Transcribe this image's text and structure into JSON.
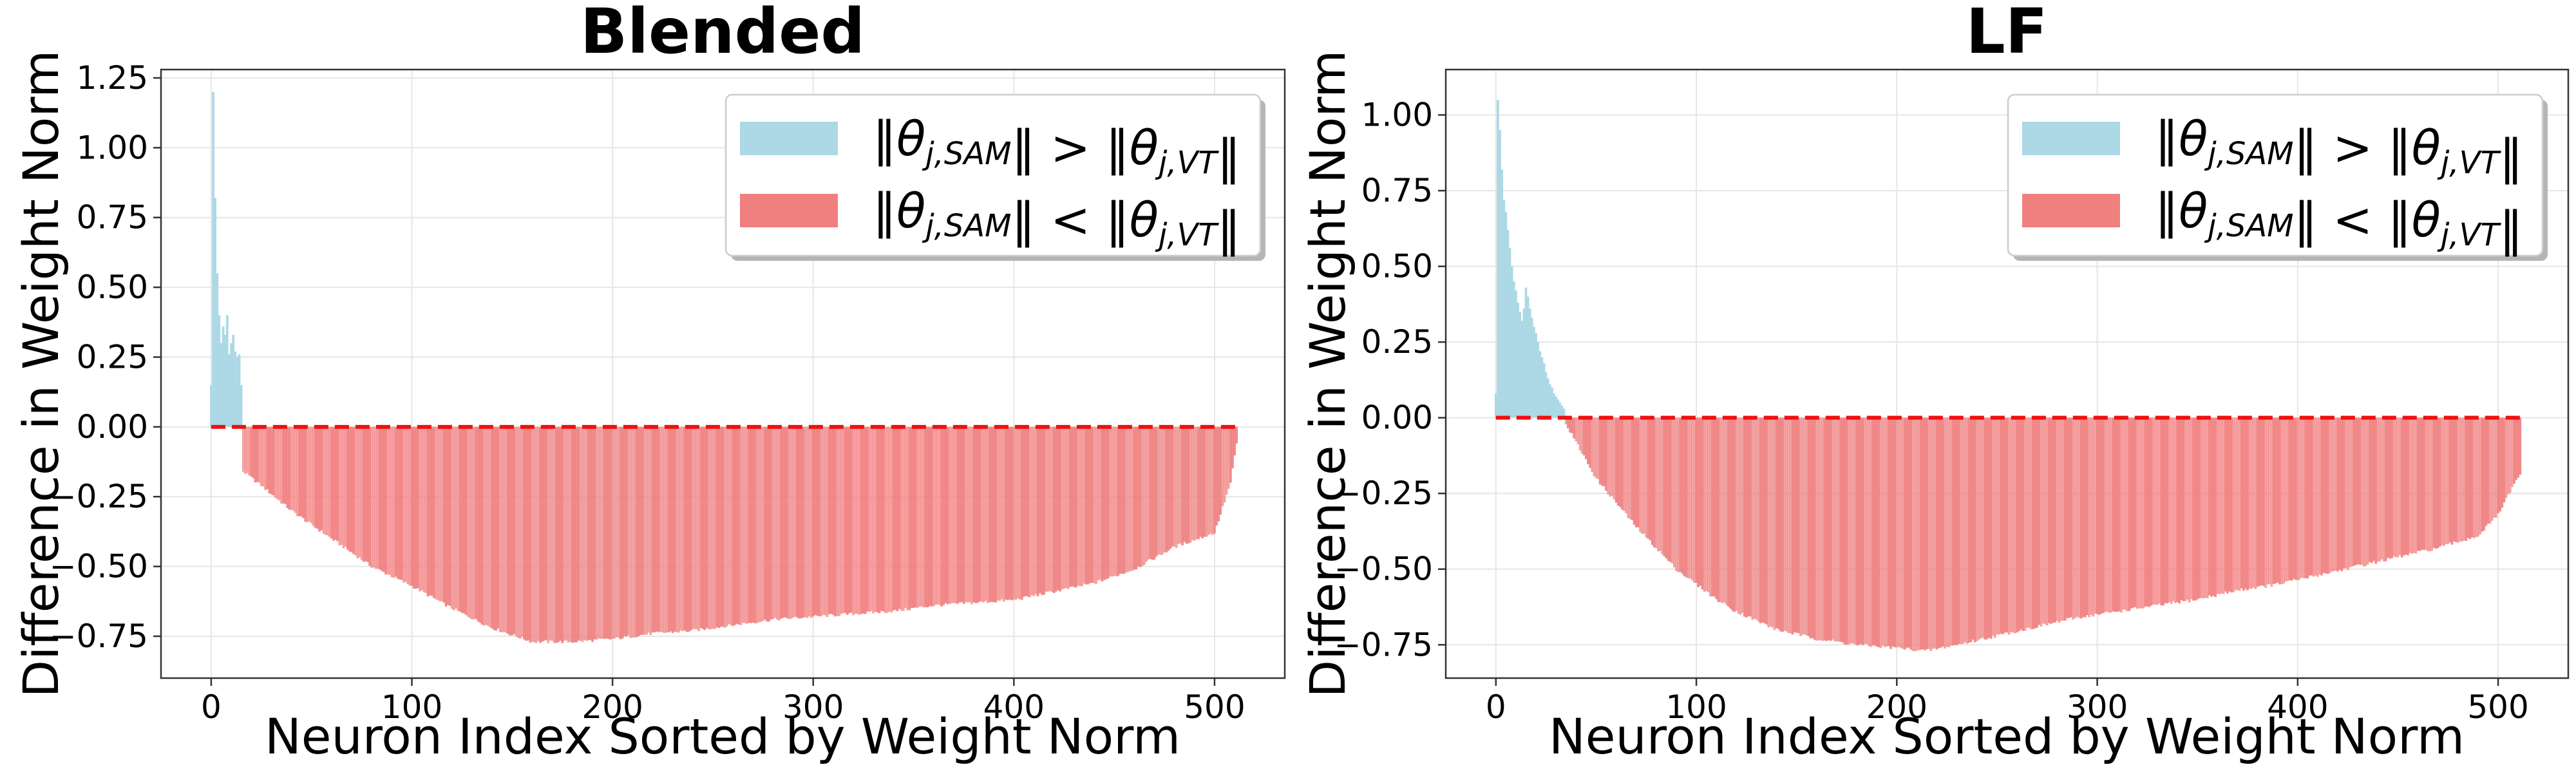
{
  "chart_data": [
    {
      "type": "bar",
      "title": "Blended",
      "xlabel": "Neuron Index Sorted by Weight Norm",
      "ylabel": "Difference in Weight Norm",
      "xlim": [
        -25,
        535
      ],
      "ylim": [
        -0.9,
        1.28
      ],
      "xticks": [
        0,
        100,
        200,
        300,
        400,
        500
      ],
      "yticks": [
        -0.75,
        -0.5,
        -0.25,
        0.0,
        0.25,
        0.5,
        0.75,
        1.0,
        1.25
      ],
      "ytick_labels": [
        "−0.75",
        "−0.50",
        "−0.25",
        "0.00",
        "0.25",
        "0.50",
        "0.75",
        "1.00",
        "1.25"
      ],
      "grid": true,
      "legend_position": "top-right",
      "n_neurons": 512,
      "positive_count": 16,
      "zero_line": {
        "x": [
          0,
          511
        ],
        "y": 0.0,
        "style": "dashed",
        "color": "#ee1111"
      },
      "series": [
        {
          "name": "‖θj,SAM‖ > ‖θj,VT‖",
          "color": "#add8e6",
          "values": [
            0.15,
            1.2,
            0.82,
            0.55,
            0.4,
            0.3,
            0.36,
            0.33,
            0.4,
            0.26,
            0.3,
            0.33,
            0.27,
            0.25,
            0.26,
            0.15
          ]
        },
        {
          "name": "‖θj,SAM‖ < ‖θj,VT‖",
          "color": "#f08080",
          "curve_points": [
            [
              16,
              -0.16
            ],
            [
              25,
              -0.21
            ],
            [
              40,
              -0.3
            ],
            [
              60,
              -0.4
            ],
            [
              80,
              -0.5
            ],
            [
              100,
              -0.57
            ],
            [
              120,
              -0.65
            ],
            [
              140,
              -0.72
            ],
            [
              160,
              -0.77
            ],
            [
              180,
              -0.77
            ],
            [
              200,
              -0.76
            ],
            [
              220,
              -0.74
            ],
            [
              240,
              -0.73
            ],
            [
              260,
              -0.71
            ],
            [
              280,
              -0.69
            ],
            [
              300,
              -0.68
            ],
            [
              320,
              -0.67
            ],
            [
              340,
              -0.66
            ],
            [
              360,
              -0.64
            ],
            [
              380,
              -0.63
            ],
            [
              400,
              -0.62
            ],
            [
              420,
              -0.59
            ],
            [
              440,
              -0.56
            ],
            [
              460,
              -0.51
            ],
            [
              480,
              -0.43
            ],
            [
              500,
              -0.38
            ],
            [
              508,
              -0.2
            ],
            [
              511,
              -0.06
            ]
          ]
        }
      ]
    },
    {
      "type": "bar",
      "title": "LF",
      "xlabel": "Neuron Index Sorted by Weight Norm",
      "ylabel": "Difference in Weight Norm",
      "xlim": [
        -25,
        535
      ],
      "ylim": [
        -0.86,
        1.15
      ],
      "xticks": [
        0,
        100,
        200,
        300,
        400,
        500
      ],
      "yticks": [
        -0.75,
        -0.5,
        -0.25,
        0.0,
        0.25,
        0.5,
        0.75,
        1.0
      ],
      "ytick_labels": [
        "−0.75",
        "−0.50",
        "−0.25",
        "0.00",
        "0.25",
        "0.50",
        "0.75",
        "1.00"
      ],
      "grid": true,
      "legend_position": "top-right",
      "n_neurons": 512,
      "positive_count": 35,
      "zero_line": {
        "x": [
          0,
          511
        ],
        "y": 0.0,
        "style": "dashed",
        "color": "#ee1111"
      },
      "series": [
        {
          "name": "‖θj,SAM‖ > ‖θj,VT‖",
          "color": "#add8e6",
          "values": [
            0.08,
            1.05,
            0.95,
            0.82,
            0.72,
            0.68,
            0.62,
            0.56,
            0.5,
            0.45,
            0.42,
            0.38,
            0.35,
            0.32,
            0.36,
            0.43,
            0.4,
            0.36,
            0.33,
            0.3,
            0.28,
            0.25,
            0.22,
            0.2,
            0.18,
            0.15,
            0.13,
            0.11,
            0.1,
            0.08,
            0.07,
            0.06,
            0.05,
            0.04,
            0.03
          ]
        },
        {
          "name": "‖θj,SAM‖ < ‖θj,VT‖",
          "color": "#f08080",
          "curve_points": [
            [
              35,
              -0.02
            ],
            [
              40,
              -0.08
            ],
            [
              50,
              -0.2
            ],
            [
              60,
              -0.28
            ],
            [
              70,
              -0.36
            ],
            [
              80,
              -0.43
            ],
            [
              90,
              -0.5
            ],
            [
              100,
              -0.55
            ],
            [
              110,
              -0.6
            ],
            [
              120,
              -0.64
            ],
            [
              140,
              -0.7
            ],
            [
              160,
              -0.73
            ],
            [
              180,
              -0.75
            ],
            [
              200,
              -0.76
            ],
            [
              215,
              -0.77
            ],
            [
              230,
              -0.75
            ],
            [
              250,
              -0.72
            ],
            [
              270,
              -0.69
            ],
            [
              290,
              -0.66
            ],
            [
              310,
              -0.64
            ],
            [
              330,
              -0.62
            ],
            [
              350,
              -0.6
            ],
            [
              370,
              -0.57
            ],
            [
              390,
              -0.55
            ],
            [
              410,
              -0.52
            ],
            [
              430,
              -0.49
            ],
            [
              450,
              -0.46
            ],
            [
              470,
              -0.43
            ],
            [
              490,
              -0.39
            ],
            [
              500,
              -0.32
            ],
            [
              508,
              -0.22
            ],
            [
              511,
              -0.19
            ]
          ]
        }
      ]
    }
  ]
}
